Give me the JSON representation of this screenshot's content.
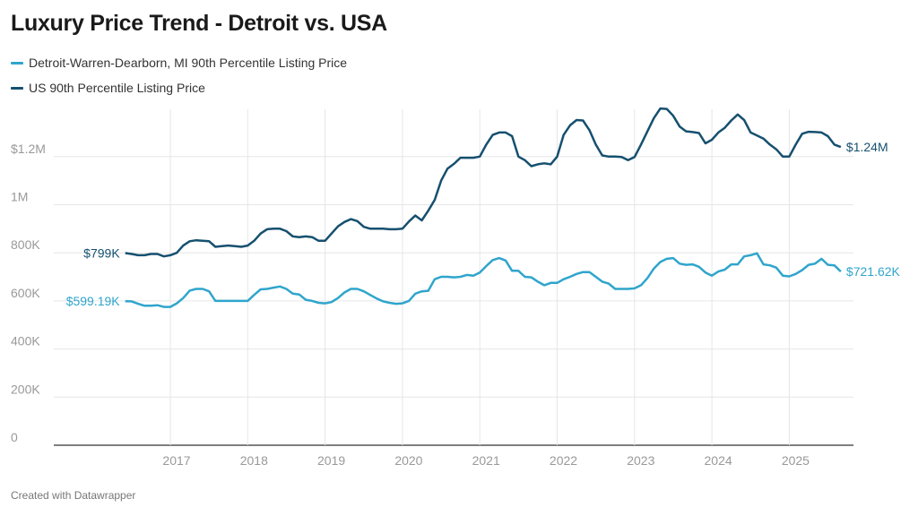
{
  "title": "Luxury Price Trend - Detroit vs. USA",
  "footer": "Created with Datawrapper",
  "colors": {
    "detroit": "#2fa5cc",
    "us": "#16506f",
    "grid": "#e6e6e6",
    "axis": "#333333"
  },
  "chart_data": {
    "type": "line",
    "title": "Luxury Price Trend - Detroit vs. USA",
    "frequency": "monthly",
    "x_start": "2016-06",
    "x_end": "2025-09",
    "x_ticks": [
      "2017",
      "2018",
      "2019",
      "2020",
      "2021",
      "2022",
      "2023",
      "2024",
      "2025"
    ],
    "y_ticks": [
      {
        "value": 0,
        "label": "0"
      },
      {
        "value": 200000,
        "label": "200K"
      },
      {
        "value": 400000,
        "label": "400K"
      },
      {
        "value": 600000,
        "label": "600K"
      },
      {
        "value": 800000,
        "label": "800K"
      },
      {
        "value": 1000000,
        "label": "1M"
      },
      {
        "value": 1200000,
        "label": "$1.2M"
      }
    ],
    "ylim": [
      0,
      1400000
    ],
    "grid": true,
    "legend_position": "top-left",
    "series": [
      {
        "name": "Detroit-Warren-Dearborn, MI 90th Percentile Listing Price",
        "key": "detroit",
        "start_label": "$599.19K",
        "end_label": "$721.62K",
        "values_k": [
          599,
          598,
          588,
          580,
          580,
          582,
          575,
          575,
          590,
          612,
          643,
          650,
          650,
          640,
          600,
          600,
          600,
          600,
          600,
          600,
          625,
          648,
          650,
          655,
          660,
          650,
          630,
          627,
          605,
          600,
          592,
          590,
          595,
          612,
          635,
          650,
          650,
          640,
          625,
          610,
          598,
          592,
          588,
          590,
          600,
          630,
          640,
          642,
          690,
          700,
          700,
          698,
          700,
          708,
          705,
          718,
          745,
          770,
          778,
          768,
          725,
          725,
          700,
          698,
          680,
          665,
          675,
          675,
          690,
          700,
          712,
          720,
          720,
          700,
          680,
          672,
          650,
          650,
          650,
          652,
          665,
          695,
          735,
          762,
          775,
          778,
          755,
          750,
          752,
          742,
          718,
          705,
          722,
          730,
          752,
          752,
          785,
          790,
          798,
          752,
          748,
          738,
          705,
          702,
          712,
          728,
          750,
          755,
          775,
          750,
          748,
          722
        ]
      },
      {
        "name": "US 90th Percentile Listing Price",
        "key": "us",
        "start_label": "$799K",
        "end_label": "$1.24M",
        "values_k": [
          799,
          795,
          790,
          790,
          795,
          795,
          785,
          790,
          800,
          830,
          848,
          852,
          850,
          848,
          825,
          828,
          830,
          828,
          825,
          830,
          850,
          880,
          898,
          900,
          900,
          890,
          868,
          865,
          868,
          865,
          850,
          850,
          880,
          910,
          928,
          940,
          932,
          908,
          900,
          900,
          900,
          898,
          898,
          900,
          930,
          955,
          935,
          975,
          1020,
          1100,
          1150,
          1170,
          1195,
          1195,
          1195,
          1200,
          1250,
          1290,
          1300,
          1300,
          1285,
          1200,
          1185,
          1160,
          1168,
          1172,
          1168,
          1200,
          1290,
          1330,
          1352,
          1350,
          1310,
          1250,
          1205,
          1200,
          1200,
          1198,
          1185,
          1198,
          1250,
          1305,
          1360,
          1400,
          1398,
          1370,
          1325,
          1305,
          1302,
          1298,
          1255,
          1270,
          1300,
          1320,
          1350,
          1375,
          1352,
          1300,
          1288,
          1275,
          1250,
          1230,
          1200,
          1200,
          1250,
          1295,
          1303,
          1302,
          1300,
          1285,
          1250,
          1240
        ]
      }
    ]
  }
}
